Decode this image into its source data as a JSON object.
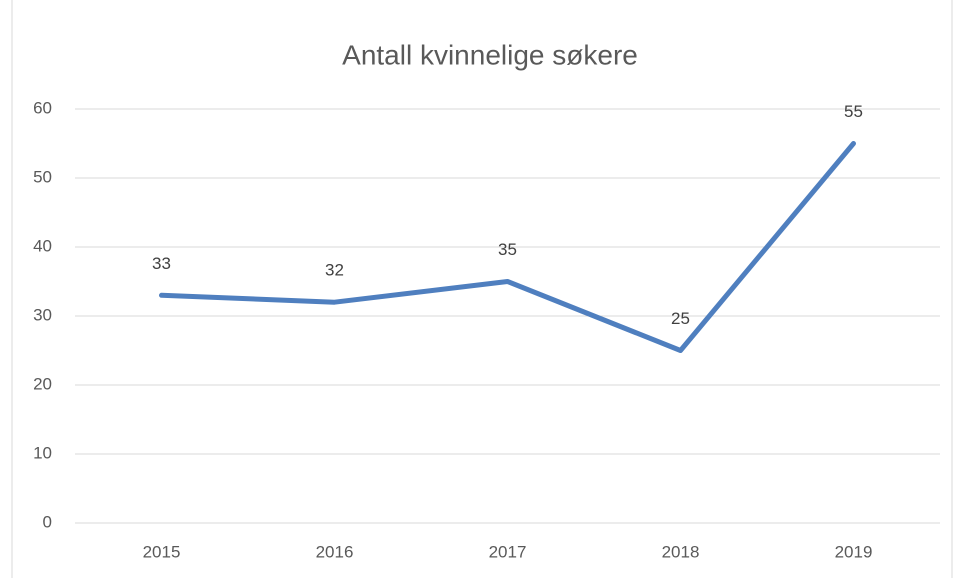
{
  "chart_data": {
    "type": "line",
    "title": "Antall kvinnelige søkere",
    "categories": [
      "2015",
      "2016",
      "2017",
      "2018",
      "2019"
    ],
    "values": [
      33,
      32,
      35,
      25,
      55
    ],
    "color": "#4f7fbf",
    "ylim": [
      0,
      60
    ],
    "yticks": [
      0,
      10,
      20,
      30,
      40,
      50,
      60
    ],
    "grid": true,
    "data_labels": true
  }
}
